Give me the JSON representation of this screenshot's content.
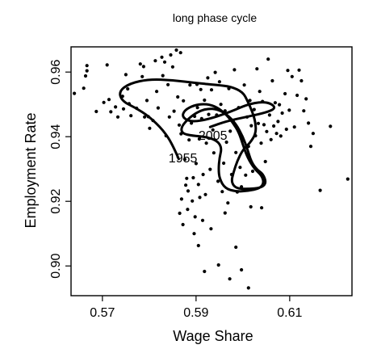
{
  "chart_data": {
    "type": "scatter",
    "title": "long phase cycle",
    "xlabel": "Wage Share",
    "ylabel": "Employment Rate",
    "xlim": [
      0.5633,
      0.6233
    ],
    "ylim": [
      0.8908,
      0.9678
    ],
    "xticks": [
      0.57,
      0.59,
      0.61
    ],
    "xtick_labels": [
      "0.57",
      "0.59",
      "0.61"
    ],
    "yticks": [
      0.9,
      0.92,
      0.94,
      0.96
    ],
    "ytick_labels": [
      "0.90",
      "0.92",
      "0.94",
      "0.96"
    ],
    "grid": false,
    "legend": "none",
    "annotations": [
      {
        "text": "1955",
        "x": 0.5872,
        "y": 0.932
      },
      {
        "text": "2005",
        "x": 0.5936,
        "y": 0.939
      }
    ],
    "series": [
      {
        "type": "scatter",
        "points": [
          [
            0.564,
            0.9534
          ],
          [
            0.566,
            0.955
          ],
          [
            0.5664,
            0.9588
          ],
          [
            0.5667,
            0.9604
          ],
          [
            0.5667,
            0.962
          ],
          [
            0.5687,
            0.9478
          ],
          [
            0.5703,
            0.9506
          ],
          [
            0.571,
            0.9622
          ],
          [
            0.5714,
            0.9515
          ],
          [
            0.5718,
            0.9477
          ],
          [
            0.5728,
            0.9492
          ],
          [
            0.5733,
            0.9461
          ],
          [
            0.5743,
            0.9525
          ],
          [
            0.5745,
            0.9486
          ],
          [
            0.575,
            0.9592
          ],
          [
            0.5754,
            0.9548
          ],
          [
            0.5757,
            0.9502
          ],
          [
            0.5761,
            0.9465
          ],
          [
            0.5773,
            0.9488
          ],
          [
            0.5781,
            0.9625
          ],
          [
            0.5785,
            0.9586
          ],
          [
            0.5788,
            0.9617
          ],
          [
            0.579,
            0.9461
          ],
          [
            0.5795,
            0.9512
          ],
          [
            0.5798,
            0.9462
          ],
          [
            0.5801,
            0.9426
          ],
          [
            0.5808,
            0.945
          ],
          [
            0.5813,
            0.9635
          ],
          [
            0.5816,
            0.954
          ],
          [
            0.5819,
            0.9489
          ],
          [
            0.5827,
            0.9646
          ],
          [
            0.5829,
            0.9589
          ],
          [
            0.5833,
            0.9631
          ],
          [
            0.5836,
            0.9403
          ],
          [
            0.584,
            0.9561
          ],
          [
            0.5843,
            0.9461
          ],
          [
            0.5846,
            0.9653
          ],
          [
            0.585,
            0.9616
          ],
          [
            0.5853,
            0.9479
          ],
          [
            0.5858,
            0.9668
          ],
          [
            0.5861,
            0.9523
          ],
          [
            0.5864,
            0.9436
          ],
          [
            0.5867,
            0.966
          ],
          [
            0.5868,
            0.9409
          ],
          [
            0.5873,
            0.9511
          ],
          [
            0.5876,
            0.933
          ],
          [
            0.5878,
            0.925
          ],
          [
            0.588,
            0.9271
          ],
          [
            0.5883,
            0.9232
          ],
          [
            0.5885,
            0.939
          ],
          [
            0.5887,
            0.956
          ],
          [
            0.589,
            0.9442
          ],
          [
            0.5892,
            0.9201
          ],
          [
            0.5894,
            0.9273
          ],
          [
            0.5897,
            0.9463
          ],
          [
            0.5898,
            0.9152
          ],
          [
            0.59,
            0.9317
          ],
          [
            0.5902,
            0.9562
          ],
          [
            0.5903,
            0.949
          ],
          [
            0.5905,
            0.9252
          ],
          [
            0.5907,
            0.9393
          ],
          [
            0.5908,
            0.9212
          ],
          [
            0.591,
            0.9546
          ],
          [
            0.5912,
            0.9456
          ],
          [
            0.5915,
            0.9283
          ],
          [
            0.5918,
            0.9513
          ],
          [
            0.592,
            0.9221
          ],
          [
            0.5922,
            0.938
          ],
          [
            0.5925,
            0.9582
          ],
          [
            0.5927,
            0.9469
          ],
          [
            0.593,
            0.9299
          ],
          [
            0.5933,
            0.9545
          ],
          [
            0.5936,
            0.9421
          ],
          [
            0.5938,
            0.935
          ],
          [
            0.5941,
            0.9599
          ],
          [
            0.5944,
            0.9467
          ],
          [
            0.5947,
            0.9262
          ],
          [
            0.595,
            0.957
          ],
          [
            0.5953,
            0.95
          ],
          [
            0.5956,
            0.923
          ],
          [
            0.5959,
            0.9318
          ],
          [
            0.5962,
            0.948
          ],
          [
            0.5965,
            0.9383
          ],
          [
            0.5968,
            0.9195
          ],
          [
            0.597,
            0.9549
          ],
          [
            0.5973,
            0.9417
          ],
          [
            0.5976,
            0.9283
          ],
          [
            0.5979,
            0.945
          ],
          [
            0.5982,
            0.9607
          ],
          [
            0.5985,
            0.9351
          ],
          [
            0.5988,
            0.9229
          ],
          [
            0.5991,
            0.949
          ],
          [
            0.5994,
            0.9305
          ],
          [
            0.5997,
            0.9245
          ],
          [
            0.6,
            0.9389
          ],
          [
            0.6003,
            0.956
          ],
          [
            0.6006,
            0.9281
          ],
          [
            0.6009,
            0.9461
          ],
          [
            0.6012,
            0.937
          ],
          [
            0.6015,
            0.9512
          ],
          [
            0.6018,
            0.9434
          ],
          [
            0.6021,
            0.9293
          ],
          [
            0.6024,
            0.9484
          ],
          [
            0.6027,
            0.9403
          ],
          [
            0.603,
            0.961
          ],
          [
            0.6033,
            0.9441
          ],
          [
            0.6036,
            0.954
          ],
          [
            0.6039,
            0.938
          ],
          [
            0.6042,
            0.9509
          ],
          [
            0.6045,
            0.9437
          ],
          [
            0.6048,
            0.9323
          ],
          [
            0.6051,
            0.9416
          ],
          [
            0.6054,
            0.964
          ],
          [
            0.6057,
            0.9467
          ],
          [
            0.606,
            0.9391
          ],
          [
            0.6063,
            0.9573
          ],
          [
            0.6066,
            0.9433
          ],
          [
            0.6069,
            0.9505
          ],
          [
            0.6072,
            0.941
          ],
          [
            0.6075,
            0.9447
          ],
          [
            0.6078,
            0.9499
          ],
          [
            0.6081,
            0.9402
          ],
          [
            0.6084,
            0.9473
          ],
          [
            0.609,
            0.9533
          ],
          [
            0.6093,
            0.9423
          ],
          [
            0.6096,
            0.9605
          ],
          [
            0.6099,
            0.9482
          ],
          [
            0.6105,
            0.9586
          ],
          [
            0.611,
            0.943
          ],
          [
            0.6116,
            0.9528
          ],
          [
            0.612,
            0.9606
          ],
          [
            0.6125,
            0.9573
          ],
          [
            0.613,
            0.948
          ],
          [
            0.6135,
            0.9517
          ],
          [
            0.614,
            0.9442
          ],
          [
            0.6145,
            0.937
          ],
          [
            0.615,
            0.941
          ],
          [
            0.6165,
            0.9234
          ],
          [
            0.6187,
            0.9432
          ],
          [
            0.6224,
            0.9269
          ],
          [
            0.5865,
            0.9163
          ],
          [
            0.5869,
            0.9207
          ],
          [
            0.5872,
            0.9128
          ],
          [
            0.5882,
            0.9175
          ],
          [
            0.5896,
            0.91
          ],
          [
            0.5905,
            0.9063
          ],
          [
            0.5914,
            0.9141
          ],
          [
            0.5918,
            0.8983
          ],
          [
            0.5932,
            0.9115
          ],
          [
            0.5948,
            0.9003
          ],
          [
            0.5962,
            0.9164
          ],
          [
            0.5972,
            0.896
          ],
          [
            0.5985,
            0.9058
          ],
          [
            0.5997,
            0.8988
          ],
          [
            0.6012,
            0.8932
          ],
          [
            0.6017,
            0.9183
          ],
          [
            0.604,
            0.918
          ]
        ]
      },
      {
        "type": "line",
        "description_free": true,
        "points": [
          [
            0.5863,
            0.9331
          ],
          [
            0.585,
            0.9375
          ],
          [
            0.583,
            0.942
          ],
          [
            0.58,
            0.9462
          ],
          [
            0.577,
            0.949
          ],
          [
            0.5742,
            0.951
          ],
          [
            0.5735,
            0.954
          ],
          [
            0.5758,
            0.9565
          ],
          [
            0.58,
            0.9578
          ],
          [
            0.585,
            0.9575
          ],
          [
            0.59,
            0.9566
          ],
          [
            0.5945,
            0.956
          ],
          [
            0.5975,
            0.9555
          ],
          [
            0.6,
            0.9538
          ],
          [
            0.601,
            0.951
          ],
          [
            0.602,
            0.9478
          ],
          [
            0.6027,
            0.9445
          ],
          [
            0.6028,
            0.941
          ],
          [
            0.6015,
            0.938
          ],
          [
            0.6,
            0.936
          ],
          [
            0.5988,
            0.9325
          ],
          [
            0.598,
            0.929
          ],
          [
            0.5975,
            0.926
          ],
          [
            0.5985,
            0.924
          ],
          [
            0.601,
            0.9238
          ],
          [
            0.604,
            0.9242
          ],
          [
            0.605,
            0.9258
          ],
          [
            0.6043,
            0.9285
          ],
          [
            0.603,
            0.9298
          ],
          [
            0.6018,
            0.9322
          ],
          [
            0.601,
            0.936
          ],
          [
            0.6,
            0.94
          ],
          [
            0.5985,
            0.944
          ],
          [
            0.5965,
            0.947
          ],
          [
            0.5945,
            0.9485
          ],
          [
            0.5925,
            0.9487
          ],
          [
            0.5905,
            0.9478
          ],
          [
            0.5885,
            0.9458
          ],
          [
            0.5868,
            0.943
          ],
          [
            0.587,
            0.941
          ],
          [
            0.5892,
            0.9403
          ],
          [
            0.592,
            0.94
          ],
          [
            0.5945,
            0.9388
          ],
          [
            0.5955,
            0.9365
          ],
          [
            0.595,
            0.9335
          ],
          [
            0.5948,
            0.93
          ],
          [
            0.595,
            0.927
          ],
          [
            0.5962,
            0.924
          ],
          [
            0.5985,
            0.923
          ],
          [
            0.601,
            0.9232
          ],
          [
            0.6037,
            0.924
          ],
          [
            0.6045,
            0.9258
          ],
          [
            0.604,
            0.928
          ],
          [
            0.6025,
            0.93
          ],
          [
            0.601,
            0.9335
          ],
          [
            0.6,
            0.9375
          ],
          [
            0.5992,
            0.9412
          ],
          [
            0.5978,
            0.9445
          ],
          [
            0.596,
            0.9475
          ],
          [
            0.594,
            0.9495
          ],
          [
            0.5918,
            0.9502
          ],
          [
            0.5895,
            0.9497
          ],
          [
            0.5875,
            0.9482
          ],
          [
            0.587,
            0.946
          ],
          [
            0.589,
            0.9445
          ],
          [
            0.593,
            0.9455
          ],
          [
            0.5975,
            0.9478
          ],
          [
            0.601,
            0.95
          ],
          [
            0.604,
            0.9508
          ],
          [
            0.606,
            0.9503
          ],
          [
            0.607,
            0.9488
          ],
          [
            0.605,
            0.9475
          ],
          [
            0.601,
            0.9462
          ],
          [
            0.5965,
            0.9448
          ],
          [
            0.593,
            0.943
          ]
        ]
      }
    ]
  }
}
